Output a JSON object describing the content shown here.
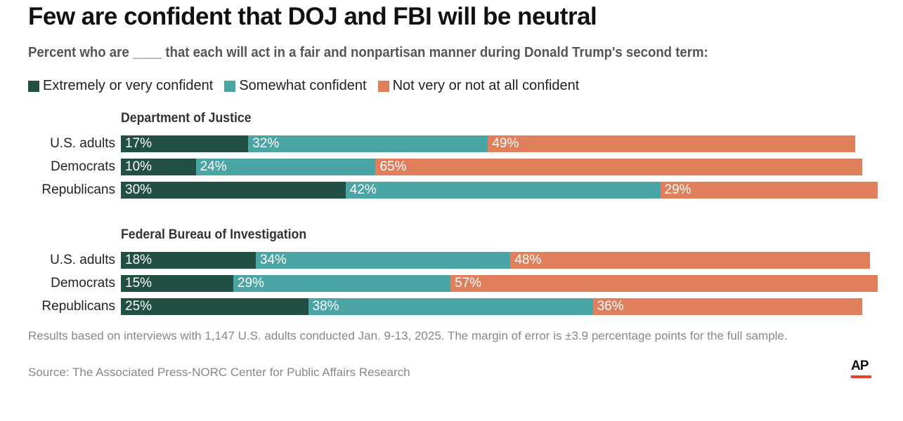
{
  "chart_data": {
    "type": "bar",
    "stacked": true,
    "orientation": "horizontal",
    "title": "Few are confident that DOJ and FBI will be neutral",
    "subtitle": "Percent who are ____ that each will act in a fair and nonpartisan manner during Donald Trump's second term:",
    "legend": [
      {
        "name": "Extremely or very confident",
        "color": "#214f44"
      },
      {
        "name": "Somewhat confident",
        "color": "#4aa5a4"
      },
      {
        "name": "Not very or not at all confident",
        "color": "#df7f5b"
      }
    ],
    "groups": [
      {
        "name": "Department of Justice",
        "rows": [
          {
            "label": "U.S. adults",
            "values": [
              17,
              32,
              49
            ]
          },
          {
            "label": "Democrats",
            "values": [
              10,
              24,
              65
            ]
          },
          {
            "label": "Republicans",
            "values": [
              30,
              42,
              29
            ]
          }
        ]
      },
      {
        "name": "Federal Bureau of Investigation",
        "rows": [
          {
            "label": "U.S. adults",
            "values": [
              18,
              34,
              48
            ]
          },
          {
            "label": "Democrats",
            "values": [
              15,
              29,
              57
            ]
          },
          {
            "label": "Republicans",
            "values": [
              25,
              38,
              36
            ]
          }
        ]
      }
    ],
    "xlim": [
      0,
      100
    ],
    "unit": "%"
  },
  "note": "Results based on interviews with 1,147 U.S. adults conducted Jan. 9-13, 2025. The margin of error is ±3.9 percentage points for the full sample.",
  "source": "Source: The Associated Press-NORC Center for Public Affairs Research",
  "logo": "AP"
}
